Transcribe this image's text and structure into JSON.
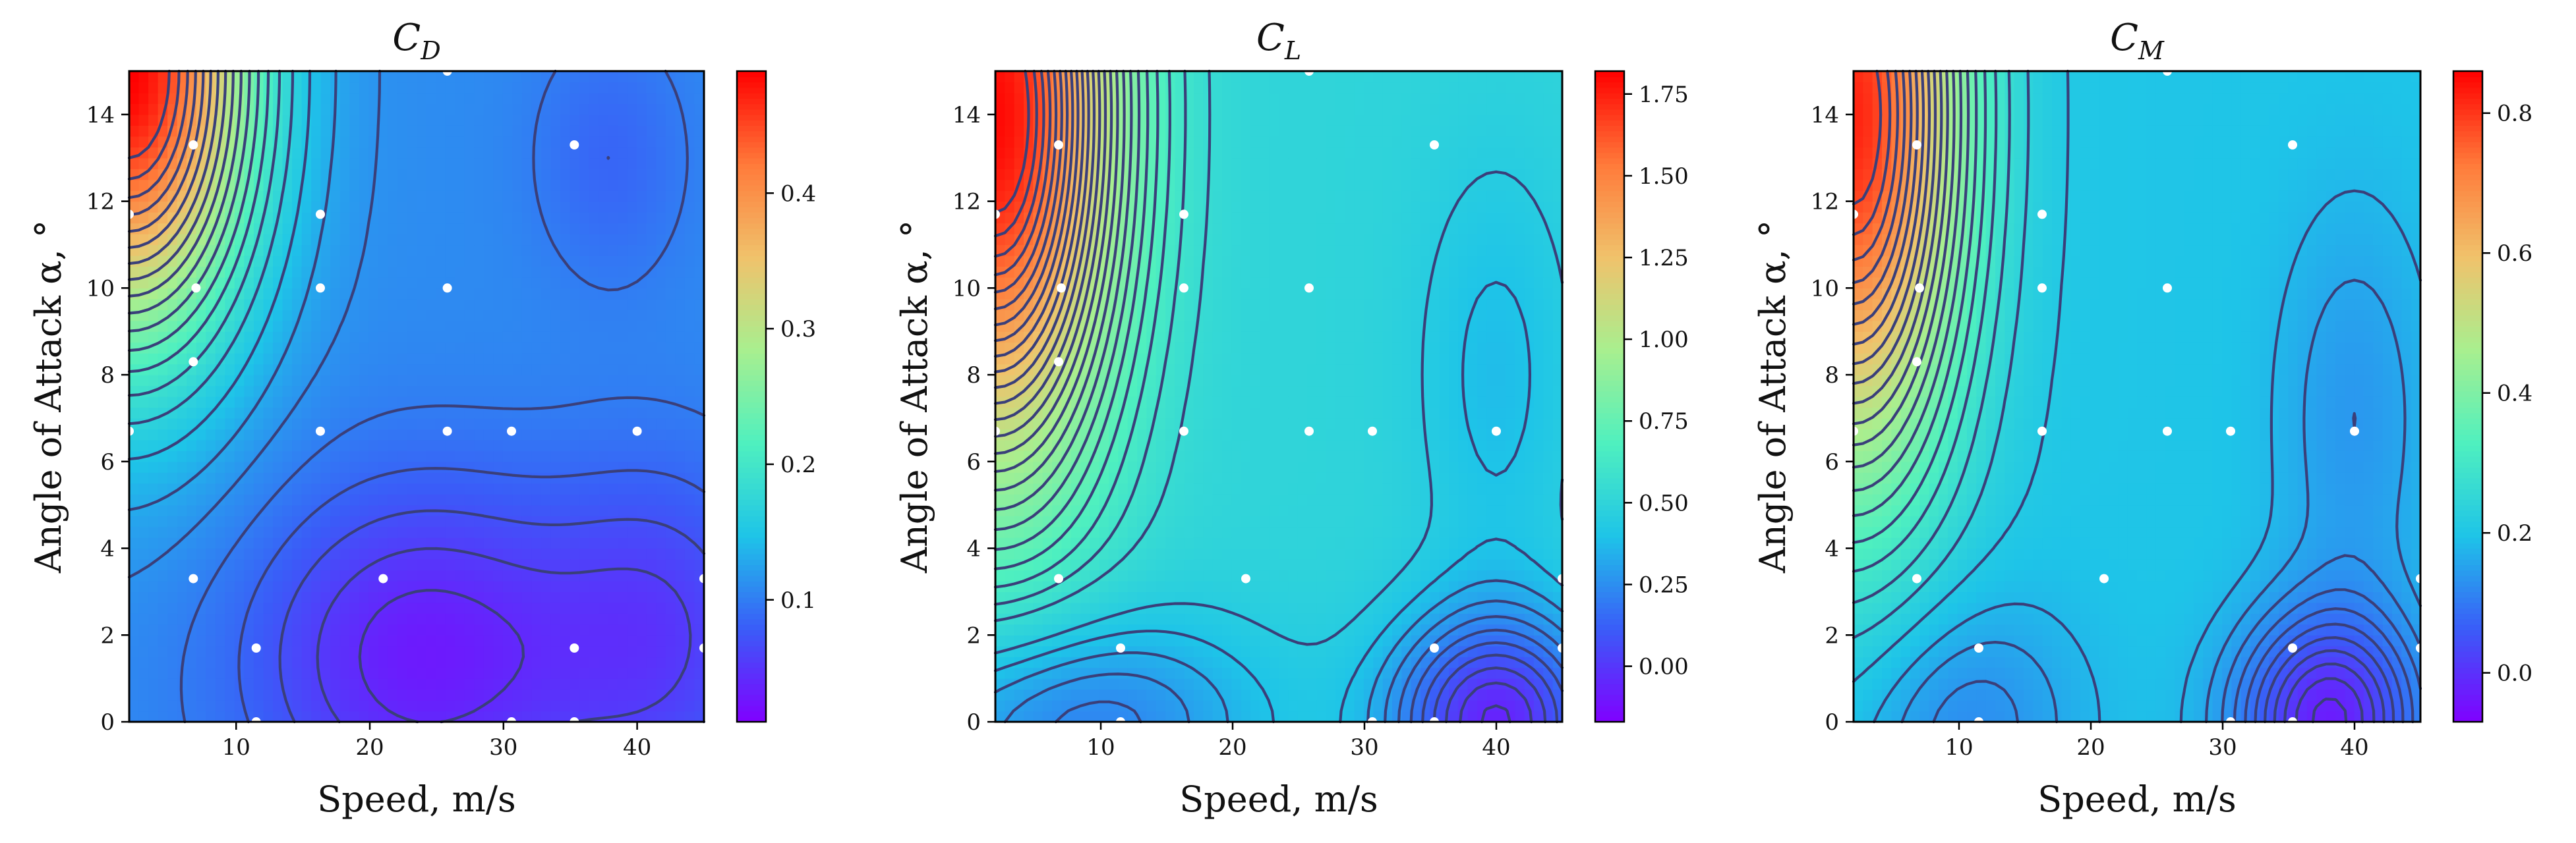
{
  "chart_data": [
    {
      "type": "heatmap",
      "title_symbol": "C",
      "title_subscript": "D",
      "xlabel": "Speed, m/s",
      "ylabel": "Angle of Attack α, °",
      "xlim": [
        2,
        45
      ],
      "ylim": [
        0,
        15
      ],
      "x_ticks": [
        10,
        20,
        30,
        40
      ],
      "y_ticks": [
        0,
        2,
        4,
        6,
        8,
        10,
        12,
        14
      ],
      "colorbar": {
        "range": [
          0.01,
          0.49
        ],
        "ticks": [
          0.1,
          0.2,
          0.3,
          0.4
        ],
        "tick_labels": [
          "0.1",
          "0.2",
          "0.3",
          "0.4"
        ]
      },
      "field": {
        "base": 0.11,
        "peaks": [
          {
            "x": 2,
            "y": 15,
            "amp": 0.38,
            "sx": 9,
            "sy": 6
          },
          {
            "x": 24,
            "y": 1.5,
            "amp": -0.08,
            "sx": 13,
            "sy": 4
          },
          {
            "x": 42,
            "y": 2,
            "amp": -0.05,
            "sx": 9,
            "sy": 4
          },
          {
            "x": 38,
            "y": 13,
            "amp": -0.025,
            "sx": 6,
            "sy": 3
          }
        ]
      },
      "contour_levels": [
        0.04,
        0.055,
        0.07,
        0.085,
        0.1,
        0.115,
        0.13,
        0.15,
        0.17,
        0.19,
        0.21,
        0.23,
        0.25,
        0.27,
        0.29,
        0.31,
        0.33,
        0.35,
        0.37,
        0.39,
        0.41,
        0.43,
        0.45
      ],
      "samples": [
        {
          "x": 2,
          "y": 11.7
        },
        {
          "x": 6.8,
          "y": 13.3
        },
        {
          "x": 7,
          "y": 10
        },
        {
          "x": 6.8,
          "y": 8.3
        },
        {
          "x": 2,
          "y": 6.7
        },
        {
          "x": 6.8,
          "y": 3.3
        },
        {
          "x": 11.5,
          "y": 1.7
        },
        {
          "x": 11.5,
          "y": 0
        },
        {
          "x": 16.3,
          "y": 11.7
        },
        {
          "x": 16.3,
          "y": 10
        },
        {
          "x": 16.3,
          "y": 6.7
        },
        {
          "x": 21,
          "y": 3.3
        },
        {
          "x": 25.8,
          "y": 15
        },
        {
          "x": 25.8,
          "y": 10
        },
        {
          "x": 25.8,
          "y": 6.7
        },
        {
          "x": 30.6,
          "y": 6.7
        },
        {
          "x": 30.6,
          "y": 0
        },
        {
          "x": 35.3,
          "y": 13.3
        },
        {
          "x": 35.3,
          "y": 1.7
        },
        {
          "x": 35.3,
          "y": 0
        },
        {
          "x": 40,
          "y": 6.7
        },
        {
          "x": 45,
          "y": 3.3
        },
        {
          "x": 45,
          "y": 1.7
        }
      ]
    },
    {
      "type": "heatmap",
      "title_symbol": "C",
      "title_subscript": "L",
      "xlabel": "Speed, m/s",
      "ylabel": "Angle of Attack α, °",
      "xlim": [
        2,
        45
      ],
      "ylim": [
        0,
        15
      ],
      "x_ticks": [
        10,
        20,
        30,
        40
      ],
      "y_ticks": [
        0,
        2,
        4,
        6,
        8,
        10,
        12,
        14
      ],
      "colorbar": {
        "range": [
          -0.17,
          1.82
        ],
        "ticks": [
          0.0,
          0.25,
          0.5,
          0.75,
          1.0,
          1.25,
          1.5,
          1.75
        ],
        "tick_labels": [
          "0.00",
          "0.25",
          "0.50",
          "0.75",
          "1.00",
          "1.25",
          "1.50",
          "1.75"
        ]
      },
      "field": {
        "base": 0.5,
        "peaks": [
          {
            "x": 2,
            "y": 14,
            "amp": 1.3,
            "sx": 9,
            "sy": 8
          },
          {
            "x": 40,
            "y": 0,
            "amp": -0.55,
            "sx": 8,
            "sy": 2.5
          },
          {
            "x": 8,
            "y": 0,
            "amp": -0.3,
            "sx": 14,
            "sy": 2.5
          },
          {
            "x": 40,
            "y": 8,
            "amp": -0.12,
            "sx": 6,
            "sy": 5
          }
        ]
      },
      "contour_levels": [
        -0.1,
        -0.05,
        0.0,
        0.05,
        0.1,
        0.15,
        0.2,
        0.25,
        0.3,
        0.35,
        0.4,
        0.45,
        0.55,
        0.6,
        0.65,
        0.7,
        0.75,
        0.8,
        0.85,
        0.9,
        0.95,
        1.0,
        1.05,
        1.1,
        1.15,
        1.2,
        1.25,
        1.3,
        1.35,
        1.4,
        1.45,
        1.5,
        1.55,
        1.6,
        1.65,
        1.7
      ],
      "samples": [
        {
          "x": 2,
          "y": 11.7
        },
        {
          "x": 6.8,
          "y": 13.3
        },
        {
          "x": 7,
          "y": 10
        },
        {
          "x": 6.8,
          "y": 8.3
        },
        {
          "x": 2,
          "y": 6.7
        },
        {
          "x": 6.8,
          "y": 3.3
        },
        {
          "x": 11.5,
          "y": 1.7
        },
        {
          "x": 11.5,
          "y": 0
        },
        {
          "x": 16.3,
          "y": 11.7
        },
        {
          "x": 16.3,
          "y": 10
        },
        {
          "x": 16.3,
          "y": 6.7
        },
        {
          "x": 21,
          "y": 3.3
        },
        {
          "x": 25.8,
          "y": 15
        },
        {
          "x": 25.8,
          "y": 10
        },
        {
          "x": 25.8,
          "y": 6.7
        },
        {
          "x": 30.6,
          "y": 6.7
        },
        {
          "x": 30.6,
          "y": 0
        },
        {
          "x": 35.3,
          "y": 13.3
        },
        {
          "x": 35.3,
          "y": 1.7
        },
        {
          "x": 35.3,
          "y": 0
        },
        {
          "x": 40,
          "y": 6.7
        },
        {
          "x": 45,
          "y": 3.3
        },
        {
          "x": 45,
          "y": 1.7
        }
      ]
    },
    {
      "type": "heatmap",
      "title_symbol": "C",
      "title_subscript": "M",
      "xlabel": "Speed, m/s",
      "ylabel": "Angle of Attack α, °",
      "xlim": [
        2,
        45
      ],
      "ylim": [
        0,
        15
      ],
      "x_ticks": [
        10,
        20,
        30,
        40
      ],
      "y_ticks": [
        0,
        2,
        4,
        6,
        8,
        10,
        12,
        14
      ],
      "colorbar": {
        "range": [
          -0.07,
          0.86
        ],
        "ticks": [
          0.0,
          0.2,
          0.4,
          0.6,
          0.8
        ],
        "tick_labels": [
          "0.0",
          "0.2",
          "0.4",
          "0.6",
          "0.8"
        ]
      },
      "field": {
        "base": 0.2,
        "peaks": [
          {
            "x": 2,
            "y": 14,
            "amp": 0.62,
            "sx": 8,
            "sy": 8
          },
          {
            "x": 38,
            "y": 0,
            "amp": -0.22,
            "sx": 7,
            "sy": 2.5
          },
          {
            "x": 10,
            "y": 0,
            "amp": -0.08,
            "sx": 9,
            "sy": 3
          },
          {
            "x": 40,
            "y": 7,
            "amp": -0.06,
            "sx": 6,
            "sy": 5
          }
        ]
      },
      "contour_levels": [
        -0.04,
        -0.02,
        0.0,
        0.02,
        0.04,
        0.06,
        0.08,
        0.1,
        0.12,
        0.14,
        0.16,
        0.18,
        0.21,
        0.24,
        0.27,
        0.3,
        0.33,
        0.36,
        0.39,
        0.42,
        0.45,
        0.48,
        0.51,
        0.54,
        0.57,
        0.6,
        0.63,
        0.66,
        0.69,
        0.72,
        0.75,
        0.78
      ],
      "samples": [
        {
          "x": 2,
          "y": 11.7
        },
        {
          "x": 6.8,
          "y": 13.3
        },
        {
          "x": 7,
          "y": 10
        },
        {
          "x": 6.8,
          "y": 8.3
        },
        {
          "x": 2,
          "y": 6.7
        },
        {
          "x": 6.8,
          "y": 3.3
        },
        {
          "x": 11.5,
          "y": 1.7
        },
        {
          "x": 11.5,
          "y": 0
        },
        {
          "x": 16.3,
          "y": 11.7
        },
        {
          "x": 16.3,
          "y": 10
        },
        {
          "x": 16.3,
          "y": 6.7
        },
        {
          "x": 21,
          "y": 3.3
        },
        {
          "x": 25.8,
          "y": 15
        },
        {
          "x": 25.8,
          "y": 10
        },
        {
          "x": 25.8,
          "y": 6.7
        },
        {
          "x": 30.6,
          "y": 6.7
        },
        {
          "x": 30.6,
          "y": 0
        },
        {
          "x": 35.3,
          "y": 13.3
        },
        {
          "x": 35.3,
          "y": 1.7
        },
        {
          "x": 35.3,
          "y": 0
        },
        {
          "x": 40,
          "y": 6.7
        },
        {
          "x": 45,
          "y": 3.3
        },
        {
          "x": 45,
          "y": 1.7
        }
      ]
    }
  ],
  "colors": {
    "contour": "#3a3f7a",
    "sample_point": "#ffffff",
    "axis": "#000000",
    "colormap": [
      "#8000ff",
      "#3a5cf8",
      "#1ec4e8",
      "#4ff0bf",
      "#a8ef8f",
      "#f0c26b",
      "#ff7a3a",
      "#ff0000"
    ]
  }
}
